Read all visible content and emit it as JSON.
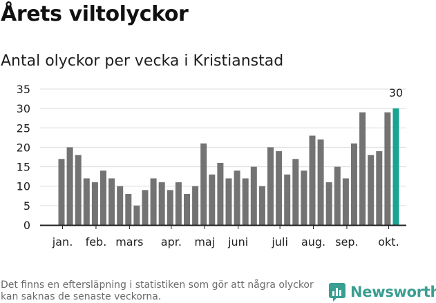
{
  "header": {
    "title": "Årets viltolyckor",
    "subtitle": "Antal olyckor per vecka i Kristianstad"
  },
  "footer": {
    "note": "Det finns en eftersläpning i statistiken som gör att några olyckor kan saknas de senaste veckorna.",
    "brand": "Newsworthy"
  },
  "colors": {
    "bar": "#737373",
    "highlight": "#1aa391",
    "grid": "#dcdcdc",
    "axis": "#1f1f1f",
    "brand": "#3a9e90"
  },
  "chart_data": {
    "type": "bar",
    "ylim": [
      0,
      35
    ],
    "yticks": [
      0,
      5,
      10,
      15,
      20,
      25,
      30,
      35
    ],
    "grid": "horizontal",
    "values": [
      17,
      20,
      18,
      12,
      11,
      14,
      12,
      10,
      8,
      5,
      9,
      12,
      11,
      9,
      11,
      8,
      10,
      21,
      13,
      16,
      12,
      14,
      12,
      15,
      10,
      20,
      19,
      13,
      17,
      14,
      23,
      22,
      11,
      15,
      12,
      21,
      29,
      18,
      19,
      29,
      30
    ],
    "highlight_index": 40,
    "highlight_label": "30",
    "month_labels": [
      {
        "label": "jan.",
        "at": 0.5
      },
      {
        "label": "feb.",
        "at": 4.5
      },
      {
        "label": "mars",
        "at": 8.5
      },
      {
        "label": "apr.",
        "at": 13.5
      },
      {
        "label": "maj",
        "at": 17.5
      },
      {
        "label": "juni",
        "at": 21.5
      },
      {
        "label": "juli",
        "at": 26.5
      },
      {
        "label": "aug.",
        "at": 30.5
      },
      {
        "label": "sep.",
        "at": 34.5
      },
      {
        "label": "okt.",
        "at": 39.5
      }
    ]
  }
}
